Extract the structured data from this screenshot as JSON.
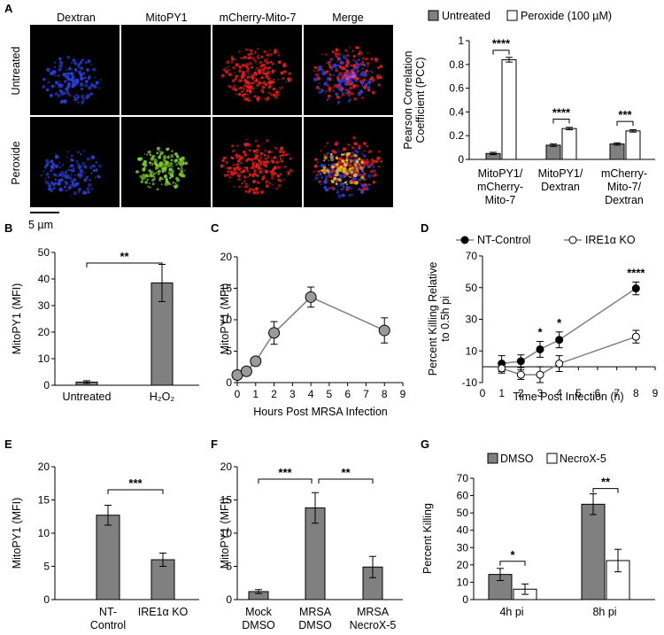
{
  "panel_letters": {
    "a": "A",
    "b": "B",
    "c": "C",
    "d": "D",
    "e": "E",
    "f": "F",
    "g": "G"
  },
  "micrograph": {
    "col_headers": [
      "Dextran",
      "MitoPY1",
      "mCherry-Mito-7",
      "Merge"
    ],
    "row_labels": [
      "Untreated",
      "Peroxide"
    ],
    "scale_bar": "5 µm",
    "colors": {
      "dextran": "#2a3fe0",
      "mitopy": "#7fd02a",
      "mcherry": "#e51c1c",
      "merge_hot": "#f2b21c",
      "background": "#000000"
    }
  },
  "chart_data": [
    {
      "id": "A",
      "type": "bar",
      "categories": [
        "MitoPY1/ mCherry- Mito-7",
        "MitoPY1/ Dextran",
        "mCherry- Mito-7/ Dextran"
      ],
      "series": [
        {
          "name": "Untreated",
          "values": [
            0.05,
            0.12,
            0.13
          ],
          "errors": [
            0.01,
            0.01,
            0.01
          ],
          "color": "#808080"
        },
        {
          "name": "Peroxide (100 µM)",
          "values": [
            0.84,
            0.26,
            0.24
          ],
          "errors": [
            0.02,
            0.01,
            0.01
          ],
          "color": "#ffffff"
        }
      ],
      "ylabel": "Pearson Correlation Coefficient (PCC)",
      "ylim": [
        0,
        1
      ],
      "yticks": [
        "0",
        "0.2",
        "0.4",
        "0.6",
        "0.8",
        "1"
      ],
      "significance": [
        "****",
        "****",
        "***"
      ],
      "legend": "top"
    },
    {
      "id": "B",
      "type": "bar",
      "categories": [
        "Untreated",
        "H₂O₂"
      ],
      "values": [
        1.2,
        38.5
      ],
      "errors": [
        0.5,
        7
      ],
      "ylabel": "MitoPY1 (MFI)",
      "ylim": [
        0,
        50
      ],
      "yticks": [
        "0",
        "10",
        "20",
        "30",
        "40",
        "50"
      ],
      "significance": "**"
    },
    {
      "id": "C",
      "type": "line",
      "x": [
        0,
        0.5,
        1,
        2,
        4,
        8
      ],
      "y": [
        1.2,
        1.8,
        3.4,
        7.9,
        13.6,
        8.3
      ],
      "errors": [
        0.3,
        0.4,
        0.5,
        1.8,
        1.6,
        2.0
      ],
      "xlabel": "Hours Post MRSA Infection",
      "ylabel": "MitoPY1 (MFI)",
      "xlim": [
        0,
        9
      ],
      "ylim": [
        0,
        20
      ],
      "xticks": [
        "0",
        "1",
        "2",
        "3",
        "4",
        "5",
        "6",
        "7",
        "8",
        "9"
      ],
      "yticks": [
        "0",
        "5",
        "10",
        "15",
        "20"
      ]
    },
    {
      "id": "D",
      "type": "line",
      "x": [
        1,
        2,
        3,
        4,
        8
      ],
      "series": [
        {
          "name": "NT-Control",
          "values": [
            2,
            3.5,
            11,
            17,
            49.5
          ],
          "errors": [
            5,
            4,
            5,
            5,
            4
          ],
          "marker": "filled"
        },
        {
          "name": "IRE1α KO",
          "values": [
            -1,
            -5,
            -5,
            2,
            19
          ],
          "errors": [
            3,
            3,
            5,
            5,
            4
          ],
          "marker": "open"
        }
      ],
      "xlabel": "Time Post Infection (h)",
      "ylabel": "Percent Killing Relative to 0.5h pi",
      "xlim": [
        0,
        9
      ],
      "ylim": [
        -10,
        70
      ],
      "xticks": [
        "0",
        "1",
        "2",
        "3",
        "4",
        "5",
        "6",
        "7",
        "8",
        "9"
      ],
      "yticks": [
        "-10",
        "10",
        "30",
        "50",
        "70"
      ],
      "significance": [
        {
          "x": 3,
          "text": "*"
        },
        {
          "x": 4,
          "text": "*"
        },
        {
          "x": 8,
          "text": "****"
        }
      ],
      "legend": "top"
    },
    {
      "id": "E",
      "type": "bar",
      "categories": [
        "NT- Control",
        "IRE1α KO"
      ],
      "values": [
        12.7,
        6
      ],
      "errors": [
        1.5,
        1
      ],
      "ylabel": "MitoPY1 (MFI)",
      "ylim": [
        0,
        20
      ],
      "yticks": [
        "0",
        "5",
        "10",
        "15",
        "20"
      ],
      "significance": "***"
    },
    {
      "id": "F",
      "type": "bar",
      "categories": [
        "Mock DMSO",
        "MRSA DMSO",
        "MRSA NecroX-5"
      ],
      "values": [
        1.2,
        13.8,
        4.9
      ],
      "errors": [
        0.3,
        2.3,
        1.6
      ],
      "ylabel": "MitoPY1 (MFI)",
      "ylim": [
        0,
        20
      ],
      "yticks": [
        "0",
        "5",
        "10",
        "15",
        "20"
      ],
      "significance": [
        "***",
        "**"
      ]
    },
    {
      "id": "G",
      "type": "bar",
      "categories": [
        "4h pi",
        "8h pi"
      ],
      "series": [
        {
          "name": "DMSO",
          "values": [
            14.5,
            55
          ],
          "errors": [
            3.5,
            6
          ],
          "color": "#808080"
        },
        {
          "name": "NecroX-5",
          "values": [
            6,
            22.5
          ],
          "errors": [
            3,
            6.5
          ],
          "color": "#ffffff"
        }
      ],
      "ylabel": "Percent Killing",
      "ylim": [
        0,
        70
      ],
      "yticks": [
        "0",
        "10",
        "20",
        "30",
        "40",
        "50",
        "60",
        "70"
      ],
      "significance": [
        "*",
        "**"
      ],
      "legend": "top"
    }
  ]
}
